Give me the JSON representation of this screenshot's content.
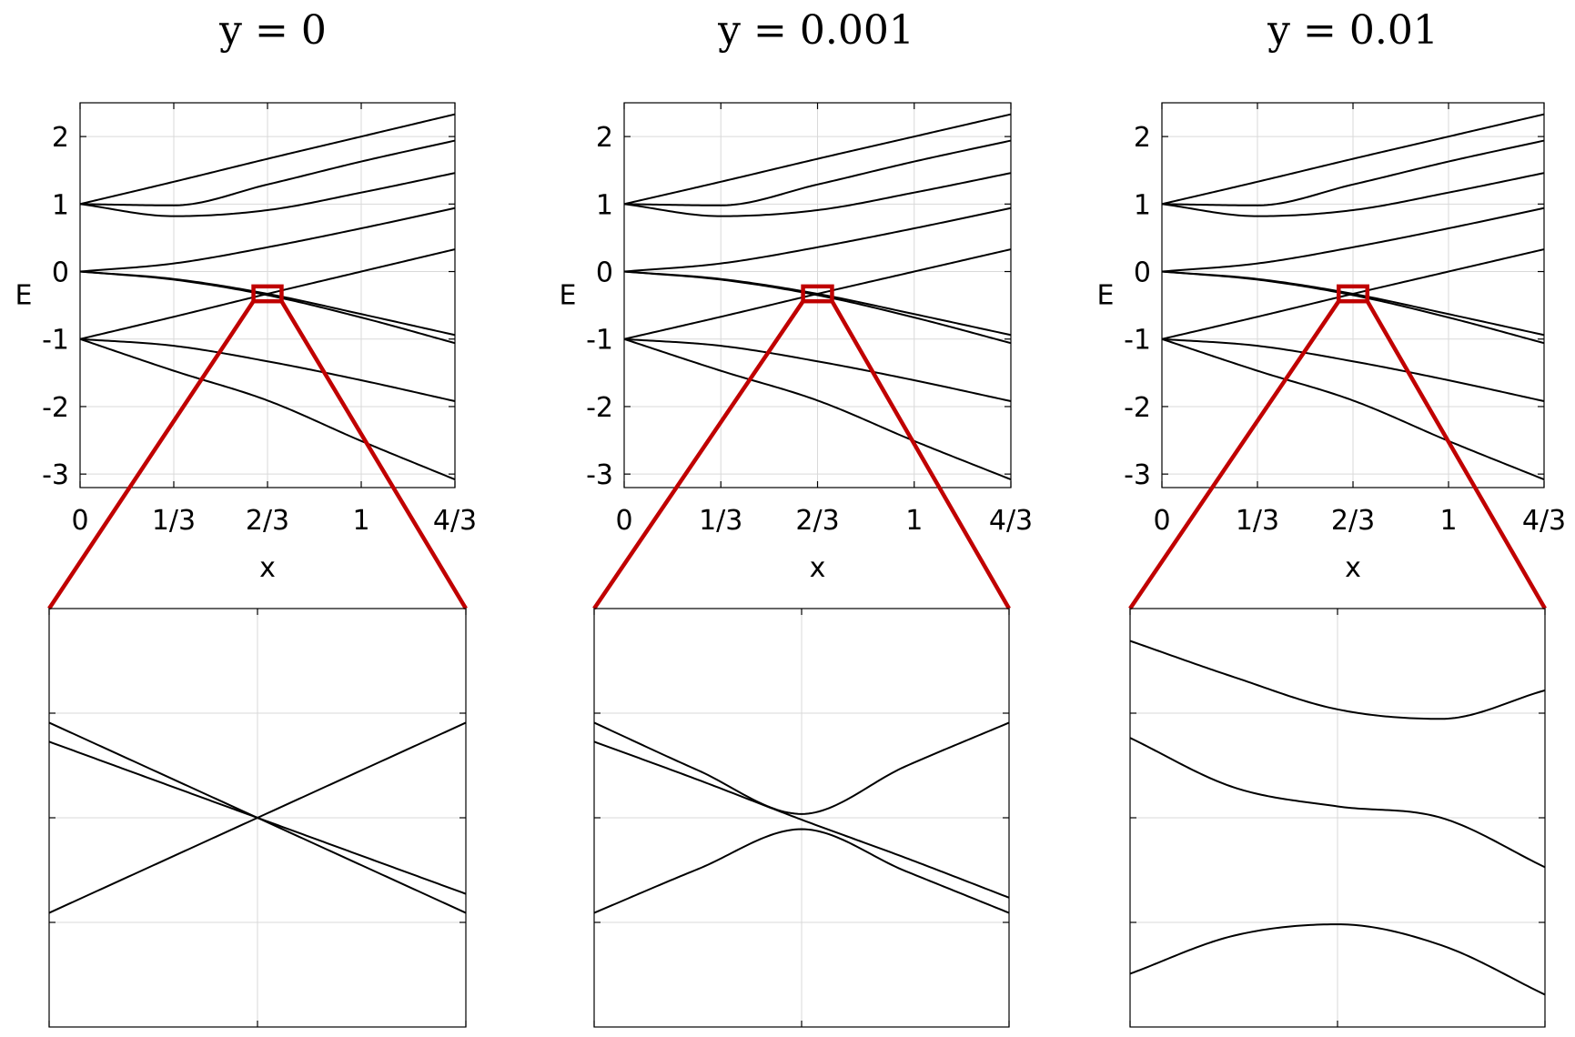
{
  "chart_data": [
    {
      "type": "line",
      "title": "y = 0",
      "xlabel": "x",
      "ylabel": "E",
      "xlim": [
        0,
        1.3333
      ],
      "ylim": [
        -3.2,
        2.5
      ],
      "xticks": [
        {
          "v": 0,
          "label": "0"
        },
        {
          "v": 0.3333,
          "label": "1/3"
        },
        {
          "v": 0.6667,
          "label": "2/3"
        },
        {
          "v": 1,
          "label": "1"
        },
        {
          "v": 1.3333,
          "label": "4/3"
        }
      ],
      "yticks": [
        {
          "v": 2,
          "label": "2"
        },
        {
          "v": 1,
          "label": "1"
        },
        {
          "v": 0,
          "label": "0"
        },
        {
          "v": -1,
          "label": "-1"
        },
        {
          "v": -2,
          "label": "-2"
        },
        {
          "v": -3,
          "label": "-3"
        }
      ],
      "grid": true,
      "series": [
        {
          "x": [
            0,
            0.3333,
            0.6667,
            1,
            1.3333
          ],
          "values": [
            1,
            1.33,
            1.67,
            2,
            2.33
          ]
        },
        {
          "x": [
            0,
            0.3333,
            0.6667,
            1,
            1.3333
          ],
          "values": [
            1,
            0.98,
            1.29,
            1.63,
            1.94
          ]
        },
        {
          "x": [
            0,
            0.3333,
            0.6667,
            1,
            1.3333
          ],
          "values": [
            1,
            0.82,
            0.91,
            1.17,
            1.46
          ]
        },
        {
          "x": [
            0,
            0.3333,
            0.6667,
            1,
            1.3333
          ],
          "values": [
            0,
            0.12,
            0.36,
            0.64,
            0.94
          ]
        },
        {
          "x": [
            0,
            0.3333,
            0.6667,
            1,
            1.3333
          ],
          "values": [
            -1,
            -0.67,
            -0.33,
            0,
            0.33
          ]
        },
        {
          "x": [
            0,
            0.3333,
            0.6667,
            1,
            1.3333
          ],
          "values": [
            0,
            -0.11,
            -0.33,
            -0.63,
            -0.94
          ]
        },
        {
          "x": [
            0,
            0.3333,
            0.6667,
            1,
            1.3333
          ],
          "values": [
            0,
            -0.12,
            -0.35,
            -0.68,
            -1.06
          ]
        },
        {
          "x": [
            0,
            0.3333,
            0.6667,
            1,
            1.3333
          ],
          "values": [
            -1,
            -1.1,
            -1.33,
            -1.61,
            -1.92
          ]
        },
        {
          "x": [
            0,
            0.3333,
            0.6667,
            1,
            1.3333
          ],
          "values": [
            -1,
            -1.47,
            -1.91,
            -2.51,
            -3.08
          ]
        }
      ],
      "zoom_box": {
        "x": [
          0.6167,
          0.7167
        ],
        "y": [
          -0.44,
          -0.22
        ]
      },
      "inset": {
        "xlim": [
          0.6167,
          0.7167
        ],
        "ylim": [
          -0.44,
          -0.22
        ],
        "series": [
          {
            "x": [
              0.6167,
              0.6667,
              0.7167
            ],
            "values": [
              -0.28,
              -0.33,
              -0.38
            ]
          },
          {
            "x": [
              0.6167,
              0.6667,
              0.7167
            ],
            "values": [
              -0.29,
              -0.33,
              -0.37
            ]
          },
          {
            "x": [
              0.6167,
              0.6667,
              0.7167
            ],
            "values": [
              -0.38,
              -0.33,
              -0.28
            ]
          }
        ]
      }
    },
    {
      "type": "line",
      "title": "y = 0.001",
      "xlabel": "x",
      "ylabel": "E",
      "xlim": [
        0,
        1.3333
      ],
      "ylim": [
        -3.2,
        2.5
      ],
      "xticks": [
        {
          "v": 0,
          "label": "0"
        },
        {
          "v": 0.3333,
          "label": "1/3"
        },
        {
          "v": 0.6667,
          "label": "2/3"
        },
        {
          "v": 1,
          "label": "1"
        },
        {
          "v": 1.3333,
          "label": "4/3"
        }
      ],
      "yticks": [
        {
          "v": 2,
          "label": "2"
        },
        {
          "v": 1,
          "label": "1"
        },
        {
          "v": 0,
          "label": "0"
        },
        {
          "v": -1,
          "label": "-1"
        },
        {
          "v": -2,
          "label": "-2"
        },
        {
          "v": -3,
          "label": "-3"
        }
      ],
      "grid": true,
      "series": [
        {
          "x": [
            0,
            0.3333,
            0.6667,
            1,
            1.3333
          ],
          "values": [
            1,
            1.33,
            1.67,
            2,
            2.33
          ]
        },
        {
          "x": [
            0,
            0.3333,
            0.6667,
            1,
            1.3333
          ],
          "values": [
            1,
            0.98,
            1.29,
            1.63,
            1.94
          ]
        },
        {
          "x": [
            0,
            0.3333,
            0.6667,
            1,
            1.3333
          ],
          "values": [
            1,
            0.82,
            0.91,
            1.17,
            1.46
          ]
        },
        {
          "x": [
            0,
            0.3333,
            0.6667,
            1,
            1.3333
          ],
          "values": [
            0,
            0.12,
            0.36,
            0.64,
            0.94
          ]
        },
        {
          "x": [
            0,
            0.3333,
            0.6667,
            1,
            1.3333
          ],
          "values": [
            -1,
            -0.67,
            -0.33,
            0,
            0.33
          ]
        },
        {
          "x": [
            0,
            0.3333,
            0.6667,
            1,
            1.3333
          ],
          "values": [
            0,
            -0.11,
            -0.33,
            -0.63,
            -0.94
          ]
        },
        {
          "x": [
            0,
            0.3333,
            0.6667,
            1,
            1.3333
          ],
          "values": [
            0,
            -0.12,
            -0.35,
            -0.68,
            -1.06
          ]
        },
        {
          "x": [
            0,
            0.3333,
            0.6667,
            1,
            1.3333
          ],
          "values": [
            -1,
            -1.1,
            -1.33,
            -1.61,
            -1.92
          ]
        },
        {
          "x": [
            0,
            0.3333,
            0.6667,
            1,
            1.3333
          ],
          "values": [
            -1,
            -1.47,
            -1.91,
            -2.51,
            -3.08
          ]
        }
      ],
      "zoom_box": {
        "x": [
          0.6167,
          0.7167
        ],
        "y": [
          -0.44,
          -0.22
        ]
      },
      "inset": {
        "xlim": [
          0.6167,
          0.7167
        ],
        "ylim": [
          -0.44,
          -0.22
        ],
        "series": [
          {
            "x": [
              0.6167,
              0.6417,
              0.6667,
              0.6917,
              0.7167
            ],
            "values": [
              -0.28,
              -0.305,
              -0.328,
              -0.303,
              -0.28
            ]
          },
          {
            "x": [
              0.6167,
              0.6417,
              0.6667,
              0.6917,
              0.7167
            ],
            "values": [
              -0.29,
              -0.31,
              -0.331,
              -0.351,
              -0.372
            ]
          },
          {
            "x": [
              0.6167,
              0.6417,
              0.6667,
              0.6917,
              0.7167
            ],
            "values": [
              -0.38,
              -0.357,
              -0.336,
              -0.358,
              -0.38
            ]
          }
        ]
      }
    },
    {
      "type": "line",
      "title": "y = 0.01",
      "xlabel": "x",
      "ylabel": "E",
      "xlim": [
        0,
        1.3333
      ],
      "ylim": [
        -3.2,
        2.5
      ],
      "xticks": [
        {
          "v": 0,
          "label": "0"
        },
        {
          "v": 0.3333,
          "label": "1/3"
        },
        {
          "v": 0.6667,
          "label": "2/3"
        },
        {
          "v": 1,
          "label": "1"
        },
        {
          "v": 1.3333,
          "label": "4/3"
        }
      ],
      "yticks": [
        {
          "v": 2,
          "label": "2"
        },
        {
          "v": 1,
          "label": "1"
        },
        {
          "v": 0,
          "label": "0"
        },
        {
          "v": -1,
          "label": "-1"
        },
        {
          "v": -2,
          "label": "-2"
        },
        {
          "v": -3,
          "label": "-3"
        }
      ],
      "grid": true,
      "series": [
        {
          "x": [
            0,
            0.3333,
            0.6667,
            1,
            1.3333
          ],
          "values": [
            1,
            1.33,
            1.67,
            2,
            2.33
          ]
        },
        {
          "x": [
            0,
            0.3333,
            0.6667,
            1,
            1.3333
          ],
          "values": [
            1,
            0.98,
            1.29,
            1.63,
            1.94
          ]
        },
        {
          "x": [
            0,
            0.3333,
            0.6667,
            1,
            1.3333
          ],
          "values": [
            1,
            0.82,
            0.91,
            1.17,
            1.46
          ]
        },
        {
          "x": [
            0,
            0.3333,
            0.6667,
            1,
            1.3333
          ],
          "values": [
            0,
            0.12,
            0.36,
            0.64,
            0.94
          ]
        },
        {
          "x": [
            0,
            0.3333,
            0.6667,
            1,
            1.3333
          ],
          "values": [
            -1,
            -0.67,
            -0.33,
            0,
            0.33
          ]
        },
        {
          "x": [
            0,
            0.3333,
            0.6667,
            1,
            1.3333
          ],
          "values": [
            0,
            -0.11,
            -0.33,
            -0.63,
            -0.94
          ]
        },
        {
          "x": [
            0,
            0.3333,
            0.6667,
            1,
            1.3333
          ],
          "values": [
            0,
            -0.12,
            -0.35,
            -0.68,
            -1.06
          ]
        },
        {
          "x": [
            0,
            0.3333,
            0.6667,
            1,
            1.3333
          ],
          "values": [
            -1,
            -1.1,
            -1.33,
            -1.61,
            -1.92
          ]
        },
        {
          "x": [
            0,
            0.3333,
            0.6667,
            1,
            1.3333
          ],
          "values": [
            -1,
            -1.47,
            -1.91,
            -2.51,
            -3.08
          ]
        }
      ],
      "zoom_box": {
        "x": [
          0.6167,
          0.7167
        ],
        "y": [
          -0.44,
          -0.22
        ]
      },
      "inset": {
        "xlim": [
          0.6167,
          0.7167
        ],
        "ylim": [
          -0.44,
          -0.22
        ],
        "series": [
          {
            "x": [
              0.6167,
              0.6417,
              0.6667,
              0.6917,
              0.7167
            ],
            "values": [
              -0.237,
              -0.256,
              -0.273,
              -0.278,
              -0.263
            ]
          },
          {
            "x": [
              0.6167,
              0.6417,
              0.6667,
              0.6917,
              0.7167
            ],
            "values": [
              -0.288,
              -0.314,
              -0.324,
              -0.33,
              -0.356
            ]
          },
          {
            "x": [
              0.6167,
              0.6417,
              0.6667,
              0.6917,
              0.7167
            ],
            "values": [
              -0.412,
              -0.392,
              -0.386,
              -0.397,
              -0.423
            ]
          }
        ]
      }
    }
  ]
}
